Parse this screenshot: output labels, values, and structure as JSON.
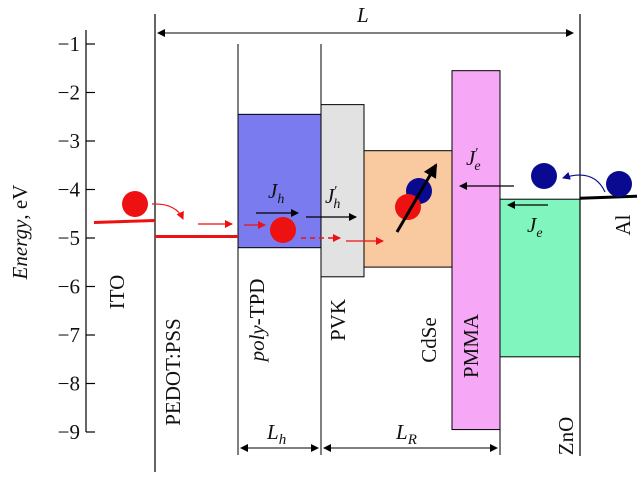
{
  "axis": {
    "ylabel_italic": "Energy",
    "ylabel_unit": ", eV",
    "ticks": [
      "−1",
      "−2",
      "−3",
      "−4",
      "−5",
      "−6",
      "−7",
      "−8",
      "−9"
    ],
    "tick_values": [
      -1,
      -2,
      -3,
      -4,
      -5,
      -6,
      -7,
      -8,
      -9
    ],
    "ylim": [
      -9.35,
      -0.6
    ]
  },
  "dimensions": {
    "L": "L",
    "Lh_main": "L",
    "Lh_sub": "h",
    "LR_main": "L",
    "LR_sub": "R"
  },
  "layers": [
    {
      "key": "pedot",
      "label": "PEDOT:PSS"
    },
    {
      "key": "tpd",
      "label_italic": "poly",
      "label_rest": "-TPD",
      "top": -2.45,
      "bottom": -5.2,
      "color": "#7b7bf0"
    },
    {
      "key": "pvk",
      "label": "PVK",
      "top": -2.25,
      "bottom": -5.8,
      "color": "#e2e2e2"
    },
    {
      "key": "cdse",
      "label": "CdSe",
      "top": -3.2,
      "bottom": -5.6,
      "color": "#f9c9a0"
    },
    {
      "key": "pmma",
      "label": "PMMA",
      "top": -1.55,
      "bottom": -8.95,
      "color": "#f6a7f6"
    },
    {
      "key": "zno",
      "label": "ZnO",
      "top": -4.2,
      "bottom": -7.45,
      "color": "#80f5be"
    }
  ],
  "electrodes": {
    "ito": {
      "label": "ITO",
      "level": -4.7
    },
    "al": {
      "label": "Al",
      "level": -4.2
    }
  },
  "currents": {
    "Jh": {
      "main": "J",
      "sub": "h"
    },
    "Jh_prime": {
      "main": "J",
      "sub": "h",
      "prime": "′"
    },
    "Je": {
      "main": "J",
      "sub": "e"
    },
    "Je_prime": {
      "main": "J",
      "sub": "e",
      "prime": "′"
    }
  },
  "colors": {
    "hole": "#ee1111",
    "electron": "#0a0a90",
    "line": "#000000"
  }
}
